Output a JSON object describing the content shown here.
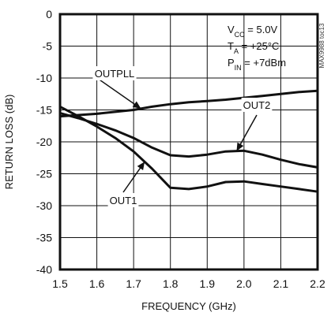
{
  "chart_data": {
    "type": "line",
    "xlabel": "FREQUENCY (GHz)",
    "ylabel": "RETURN LOSS (dB)",
    "xlim": [
      1.5,
      2.2
    ],
    "ylim": [
      -40,
      0
    ],
    "x_ticks": [
      "1.5",
      "1.6",
      "1.7",
      "1.8",
      "1.9",
      "2.0",
      "2.1",
      "2.2"
    ],
    "y_ticks": [
      "0",
      "-5",
      "-10",
      "-15",
      "-20",
      "-25",
      "-30",
      "-35",
      "-40"
    ],
    "grid": true,
    "conditions": [
      {
        "main": "V",
        "sub": "CC",
        "rest": " = 5.0V"
      },
      {
        "main": "T",
        "sub": "A",
        "rest": " = +25°C"
      },
      {
        "main": "P",
        "sub": "IN",
        "rest": " = +7dBm"
      }
    ],
    "side_label": "MAX9988 toc13",
    "series": [
      {
        "name": "OUTPLL",
        "x": [
          1.5,
          1.55,
          1.6,
          1.65,
          1.7,
          1.75,
          1.8,
          1.85,
          1.9,
          1.95,
          2.0,
          2.05,
          2.1,
          2.15,
          2.2
        ],
        "y": [
          -16.0,
          -15.8,
          -15.6,
          -15.3,
          -15.0,
          -14.5,
          -14.1,
          -13.8,
          -13.6,
          -13.4,
          -13.1,
          -12.8,
          -12.5,
          -12.2,
          -12.0
        ]
      },
      {
        "name": "OUT2",
        "x": [
          1.5,
          1.55,
          1.6,
          1.65,
          1.7,
          1.75,
          1.8,
          1.85,
          1.9,
          1.95,
          2.0,
          2.05,
          2.1,
          2.15,
          2.2
        ],
        "y": [
          -15.5,
          -16.3,
          -17.2,
          -18.2,
          -19.4,
          -20.9,
          -22.1,
          -22.3,
          -22.0,
          -21.5,
          -21.4,
          -22.0,
          -22.8,
          -23.5,
          -24.0
        ]
      },
      {
        "name": "OUT1",
        "x": [
          1.5,
          1.55,
          1.6,
          1.65,
          1.7,
          1.75,
          1.8,
          1.85,
          1.9,
          1.95,
          2.0,
          2.05,
          2.1,
          2.15,
          2.2
        ],
        "y": [
          -14.5,
          -16.0,
          -17.6,
          -19.4,
          -21.5,
          -24.2,
          -27.2,
          -27.4,
          -27.0,
          -26.3,
          -26.2,
          -26.6,
          -27.0,
          -27.4,
          -27.8
        ]
      }
    ],
    "annotations": [
      {
        "series": "OUTPLL",
        "text": "OUTPLL",
        "at_x": 1.72
      },
      {
        "series": "OUT2",
        "text": "OUT2",
        "at_x": 1.98
      },
      {
        "series": "OUT1",
        "text": "OUT1",
        "at_x": 1.73
      }
    ]
  }
}
